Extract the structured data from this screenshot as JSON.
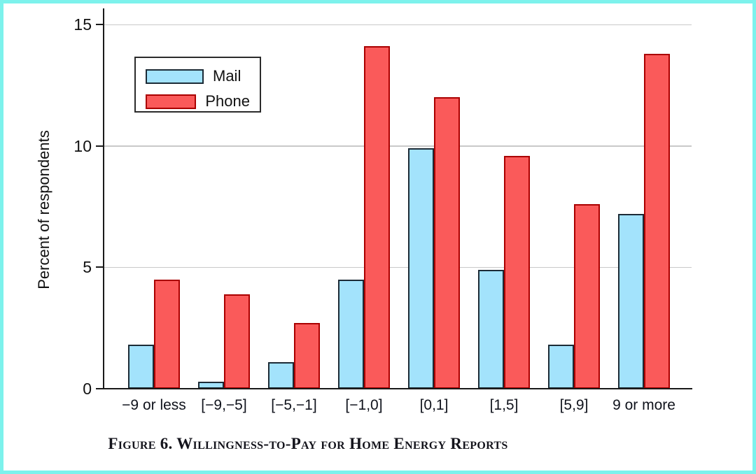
{
  "figure": {
    "caption": "Figure 6. Willingness-to-Pay for Home Energy Reports",
    "frame_color": "#7DF2EC"
  },
  "chart_data": {
    "type": "bar",
    "title": "",
    "xlabel": "",
    "ylabel": "Percent of respondents",
    "categories": [
      "−9 or less",
      "[−9,−5]",
      "[−5,−1]",
      "[−1,0]",
      "[0,1]",
      "[1,5]",
      "[5,9]",
      "9 or more"
    ],
    "series": [
      {
        "name": "Mail",
        "fill": "#A3E3FC",
        "border": "#1C2B36",
        "values": [
          1.8,
          0.3,
          1.1,
          4.5,
          9.9,
          4.9,
          1.8,
          7.2
        ]
      },
      {
        "name": "Phone",
        "fill": "#FA5A5A",
        "border": "#AA0000",
        "values": [
          4.5,
          3.9,
          2.7,
          14.1,
          12.0,
          9.6,
          7.6,
          13.8
        ]
      }
    ],
    "ylim": [
      0,
      15.6
    ],
    "yticks": [
      0,
      5,
      10,
      15
    ],
    "grid": "horizontal",
    "gridline_color": "#C9C9C9",
    "axis_color": "#1A1A1A",
    "legend_position": "upper-left-inside"
  }
}
